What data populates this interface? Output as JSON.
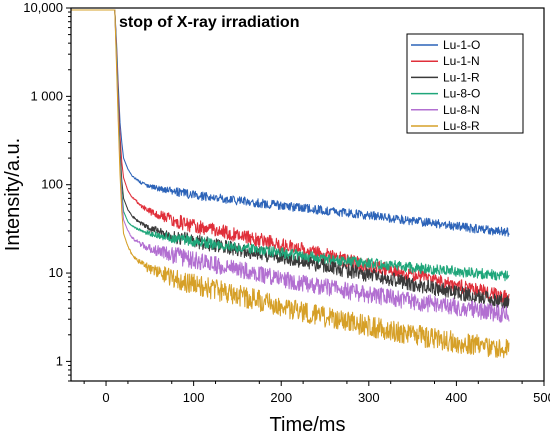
{
  "chart_data": {
    "type": "line",
    "title": "",
    "annotation": "stop of X-ray irradiation",
    "xlabel": "Time/ms",
    "ylabel": "Intensity/a.u.",
    "xlim": [
      -40,
      500
    ],
    "ylim": [
      0.6,
      10000
    ],
    "yscale": "log",
    "legend_position": "top-right",
    "x_ticks": [
      0,
      100,
      200,
      300,
      400,
      500
    ],
    "x_tick_labels": [
      "0",
      "100",
      "200",
      "300",
      "400",
      "500"
    ],
    "y_ticks": [
      1,
      10,
      100,
      1000,
      10000
    ],
    "y_tick_labels": [
      "1",
      "10",
      "100",
      "1 000",
      "10,000"
    ],
    "series": [
      {
        "name": "Lu-1-O",
        "color": "#2c63b8",
        "x": [
          -40,
          10,
          12,
          14,
          16,
          18,
          20,
          25,
          30,
          40,
          50,
          75,
          100,
          150,
          200,
          250,
          300,
          350,
          400,
          430,
          460
        ],
        "y": [
          9500,
          9500,
          4000,
          1300,
          500,
          300,
          200,
          150,
          125,
          105,
          95,
          85,
          76,
          66,
          58,
          51,
          45,
          39,
          34,
          31,
          29
        ]
      },
      {
        "name": "Lu-1-N",
        "color": "#e02f3a",
        "x": [
          -40,
          10,
          12,
          14,
          16,
          18,
          20,
          25,
          30,
          40,
          50,
          75,
          100,
          150,
          200,
          250,
          300,
          350,
          400,
          430,
          460
        ],
        "y": [
          9500,
          9500,
          3500,
          1000,
          350,
          180,
          120,
          85,
          72,
          58,
          50,
          40,
          34,
          27,
          21,
          16,
          12,
          9.5,
          7.2,
          6.2,
          5.2
        ]
      },
      {
        "name": "Lu-1-R",
        "color": "#3a3a3a",
        "x": [
          -40,
          10,
          12,
          14,
          16,
          18,
          20,
          25,
          30,
          40,
          50,
          75,
          100,
          150,
          200,
          250,
          300,
          350,
          400,
          430,
          460
        ],
        "y": [
          9500,
          9500,
          3000,
          800,
          250,
          110,
          70,
          52,
          44,
          36,
          32,
          26,
          23,
          18.5,
          15,
          12,
          9.5,
          7.5,
          6,
          5.3,
          4.6
        ]
      },
      {
        "name": "Lu-8-O",
        "color": "#1fa67a",
        "x": [
          -40,
          10,
          12,
          14,
          16,
          18,
          20,
          25,
          30,
          40,
          50,
          75,
          100,
          150,
          200,
          250,
          300,
          350,
          400,
          430,
          460
        ],
        "y": [
          9500,
          9500,
          3000,
          700,
          200,
          85,
          50,
          38,
          34,
          30,
          28,
          25,
          23,
          19.5,
          17,
          14.5,
          13,
          11.5,
          10.5,
          9.8,
          9.2
        ]
      },
      {
        "name": "Lu-8-N",
        "color": "#b26fd1",
        "x": [
          -40,
          10,
          12,
          14,
          16,
          18,
          20,
          25,
          30,
          40,
          50,
          75,
          100,
          150,
          200,
          250,
          300,
          350,
          400,
          430,
          460
        ],
        "y": [
          9500,
          9500,
          2500,
          600,
          160,
          70,
          40,
          30,
          25,
          21,
          19,
          16,
          14,
          11,
          8.7,
          7,
          5.7,
          4.8,
          4.1,
          3.7,
          3.4
        ]
      },
      {
        "name": "Lu-8-R",
        "color": "#d6a028",
        "x": [
          -40,
          10,
          12,
          14,
          16,
          18,
          20,
          25,
          30,
          40,
          50,
          75,
          100,
          150,
          200,
          250,
          300,
          350,
          400,
          430,
          460
        ],
        "y": [
          9500,
          9500,
          2200,
          500,
          130,
          50,
          28,
          20,
          16,
          13,
          11,
          9,
          7.5,
          5.6,
          4.2,
          3.2,
          2.5,
          2,
          1.65,
          1.5,
          1.35
        ]
      }
    ]
  }
}
